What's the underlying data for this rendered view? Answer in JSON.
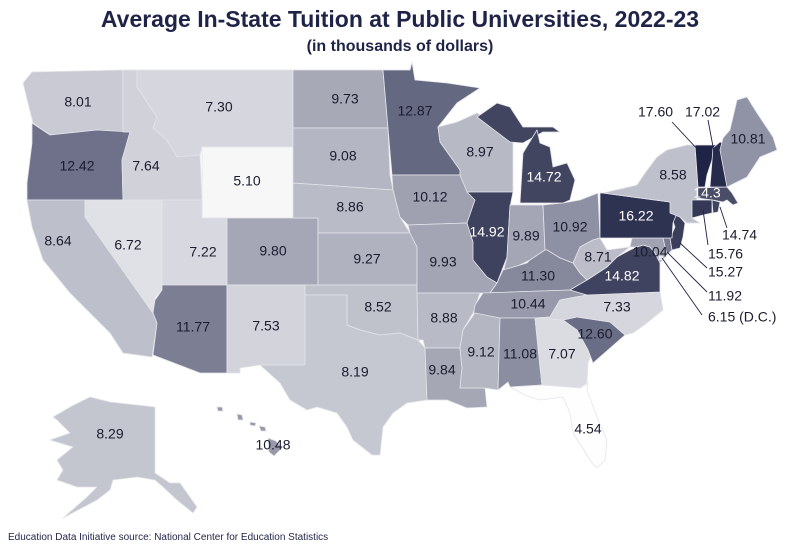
{
  "title": "Average In-State Tuition at Public Universities, 2022-23",
  "subtitle": "(in thousands of dollars)",
  "source": "Education Data Initiative source: National Center for Education Statistics",
  "colors": {
    "title": "#1f2447",
    "label_dark": "#1a1c2e",
    "label_light": "#ffffff",
    "scale": [
      [
        4.5,
        "#ffffff"
      ],
      [
        7,
        "#dcdde3"
      ],
      [
        9,
        "#b6b8c4"
      ],
      [
        10.5,
        "#9799aa"
      ],
      [
        12.5,
        "#6c6f88"
      ],
      [
        14.8,
        "#40435f"
      ],
      [
        17.6,
        "#1f2346"
      ]
    ]
  },
  "states": {
    "WA": {
      "value": 8.01,
      "label": "8.01"
    },
    "OR": {
      "value": 12.42,
      "label": "12.42"
    },
    "CA": {
      "value": 8.64,
      "label": "8.64"
    },
    "NV": {
      "value": 6.72,
      "label": "6.72"
    },
    "ID": {
      "value": 7.64,
      "label": "7.64"
    },
    "MT": {
      "value": 7.3,
      "label": "7.30"
    },
    "WY": {
      "value": 5.1,
      "label": "5.10"
    },
    "UT": {
      "value": 7.22,
      "label": "7.22"
    },
    "CO": {
      "value": 9.8,
      "label": "9.80"
    },
    "AZ": {
      "value": 11.77,
      "label": "11.77"
    },
    "NM": {
      "value": 7.53,
      "label": "7.53"
    },
    "ND": {
      "value": 9.73,
      "label": "9.73"
    },
    "SD": {
      "value": 9.08,
      "label": "9.08"
    },
    "NE": {
      "value": 8.86,
      "label": "8.86"
    },
    "KS": {
      "value": 9.27,
      "label": "9.27"
    },
    "OK": {
      "value": 8.52,
      "label": "8.52"
    },
    "TX": {
      "value": 8.19,
      "label": "8.19"
    },
    "MN": {
      "value": 12.87,
      "label": "12.87"
    },
    "IA": {
      "value": 10.12,
      "label": "10.12"
    },
    "MO": {
      "value": 9.93,
      "label": "9.93"
    },
    "AR": {
      "value": 8.88,
      "label": "8.88"
    },
    "LA": {
      "value": 9.84,
      "label": "9.84"
    },
    "WI": {
      "value": 8.97,
      "label": "8.97"
    },
    "MI": {
      "value": 14.72,
      "label": "14.72"
    },
    "IL": {
      "value": 14.92,
      "label": "14.92"
    },
    "IN": {
      "value": 9.89,
      "label": "9.89"
    },
    "OH": {
      "value": 10.92,
      "label": "10.92"
    },
    "KY": {
      "value": 11.3,
      "label": "11.30"
    },
    "TN": {
      "value": 10.44,
      "label": "10.44"
    },
    "MS": {
      "value": 9.12,
      "label": "9.12"
    },
    "AL": {
      "value": 11.08,
      "label": "11.08"
    },
    "GA": {
      "value": 7.07,
      "label": "7.07"
    },
    "FL": {
      "value": 4.54,
      "label": "4.54"
    },
    "SC": {
      "value": 12.6,
      "label": "12.60"
    },
    "NC": {
      "value": 7.33,
      "label": "7.33"
    },
    "VA": {
      "value": 14.82,
      "label": "14.82"
    },
    "WV": {
      "value": 8.71,
      "label": "8.71"
    },
    "MD": {
      "value": 10.04,
      "label": "10.04"
    },
    "DE": {
      "value": 11.92,
      "label": "11.92"
    },
    "DC": {
      "value": 6.15,
      "label": "6.15 (D.C.)"
    },
    "NJ": {
      "value": 15.27,
      "label": "15.27"
    },
    "PA": {
      "value": 16.22,
      "label": "16.22"
    },
    "NY": {
      "value": 8.58,
      "label": "8.58"
    },
    "CT": {
      "value": 15.76,
      "label": "15.76"
    },
    "RI": {
      "value": 14.74,
      "label": "14.74"
    },
    "MA": {
      "value": 14.3,
      "label": "14.3"
    },
    "VT": {
      "value": 17.6,
      "label": "17.60"
    },
    "NH": {
      "value": 17.02,
      "label": "17.02"
    },
    "ME": {
      "value": 10.81,
      "label": "10.81"
    },
    "AK": {
      "value": 8.29,
      "label": "8.29"
    },
    "HI": {
      "value": 10.48,
      "label": "10.48"
    }
  }
}
